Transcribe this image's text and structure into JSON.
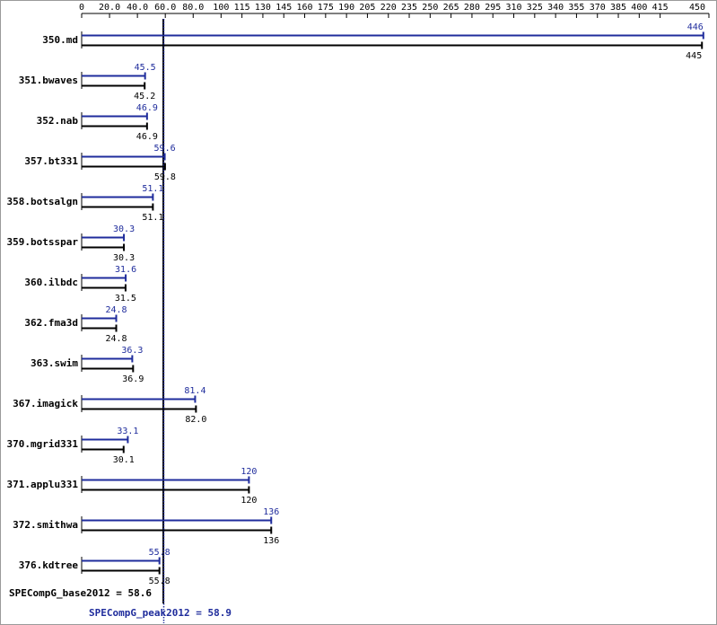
{
  "colors": {
    "peak": "#1f2c9c",
    "base": "#000000"
  },
  "chart_data": {
    "type": "bar",
    "orientation": "horizontal",
    "xlim": [
      0,
      450
    ],
    "ticks": [
      0,
      20,
      40,
      60,
      80,
      100,
      115,
      130,
      145,
      160,
      175,
      190,
      205,
      220,
      235,
      250,
      265,
      280,
      295,
      310,
      325,
      340,
      355,
      370,
      385,
      400,
      415,
      450
    ],
    "tick_labels": [
      "0",
      "20.0",
      "40.0",
      "60.0",
      "80.0",
      "100",
      "115",
      "130",
      "145",
      "160",
      "175",
      "190",
      "205",
      "220",
      "235",
      "250",
      "265",
      "280",
      "295",
      "310",
      "325",
      "340",
      "355",
      "370",
      "385",
      "400",
      "415",
      "450"
    ],
    "categories": [
      "350.md",
      "351.bwaves",
      "352.nab",
      "357.bt331",
      "358.botsalgn",
      "359.botsspar",
      "360.ilbdc",
      "362.fma3d",
      "363.swim",
      "367.imagick",
      "370.mgrid331",
      "371.applu331",
      "372.smithwa",
      "376.kdtree"
    ],
    "series": [
      {
        "key": "peak",
        "values": [
          446,
          45.5,
          46.9,
          59.6,
          51.1,
          30.3,
          31.6,
          24.8,
          36.3,
          81.4,
          33.1,
          120,
          136,
          55.8
        ],
        "labels": [
          "446",
          "45.5",
          "46.9",
          "59.6",
          "51.1",
          "30.3",
          "31.6",
          "24.8",
          "36.3",
          "81.4",
          "33.1",
          "120",
          "136",
          "55.8"
        ]
      },
      {
        "key": "base",
        "values": [
          445,
          45.2,
          46.9,
          59.8,
          51.1,
          30.3,
          31.5,
          24.8,
          36.9,
          82.0,
          30.1,
          120,
          136,
          55.8
        ],
        "labels": [
          "445",
          "45.2",
          "46.9",
          "59.8",
          "51.1",
          "30.3",
          "31.5",
          "24.8",
          "36.9",
          "82.0",
          "30.1",
          "120",
          "136",
          "55.8"
        ]
      }
    ],
    "reference_lines": [
      {
        "key": "base",
        "value": 58.6,
        "style": "solid",
        "label": "SPECompG_base2012 = 58.6"
      },
      {
        "key": "peak",
        "value": 58.9,
        "style": "dotted",
        "label": "SPECompG_peak2012 = 58.9"
      }
    ]
  }
}
